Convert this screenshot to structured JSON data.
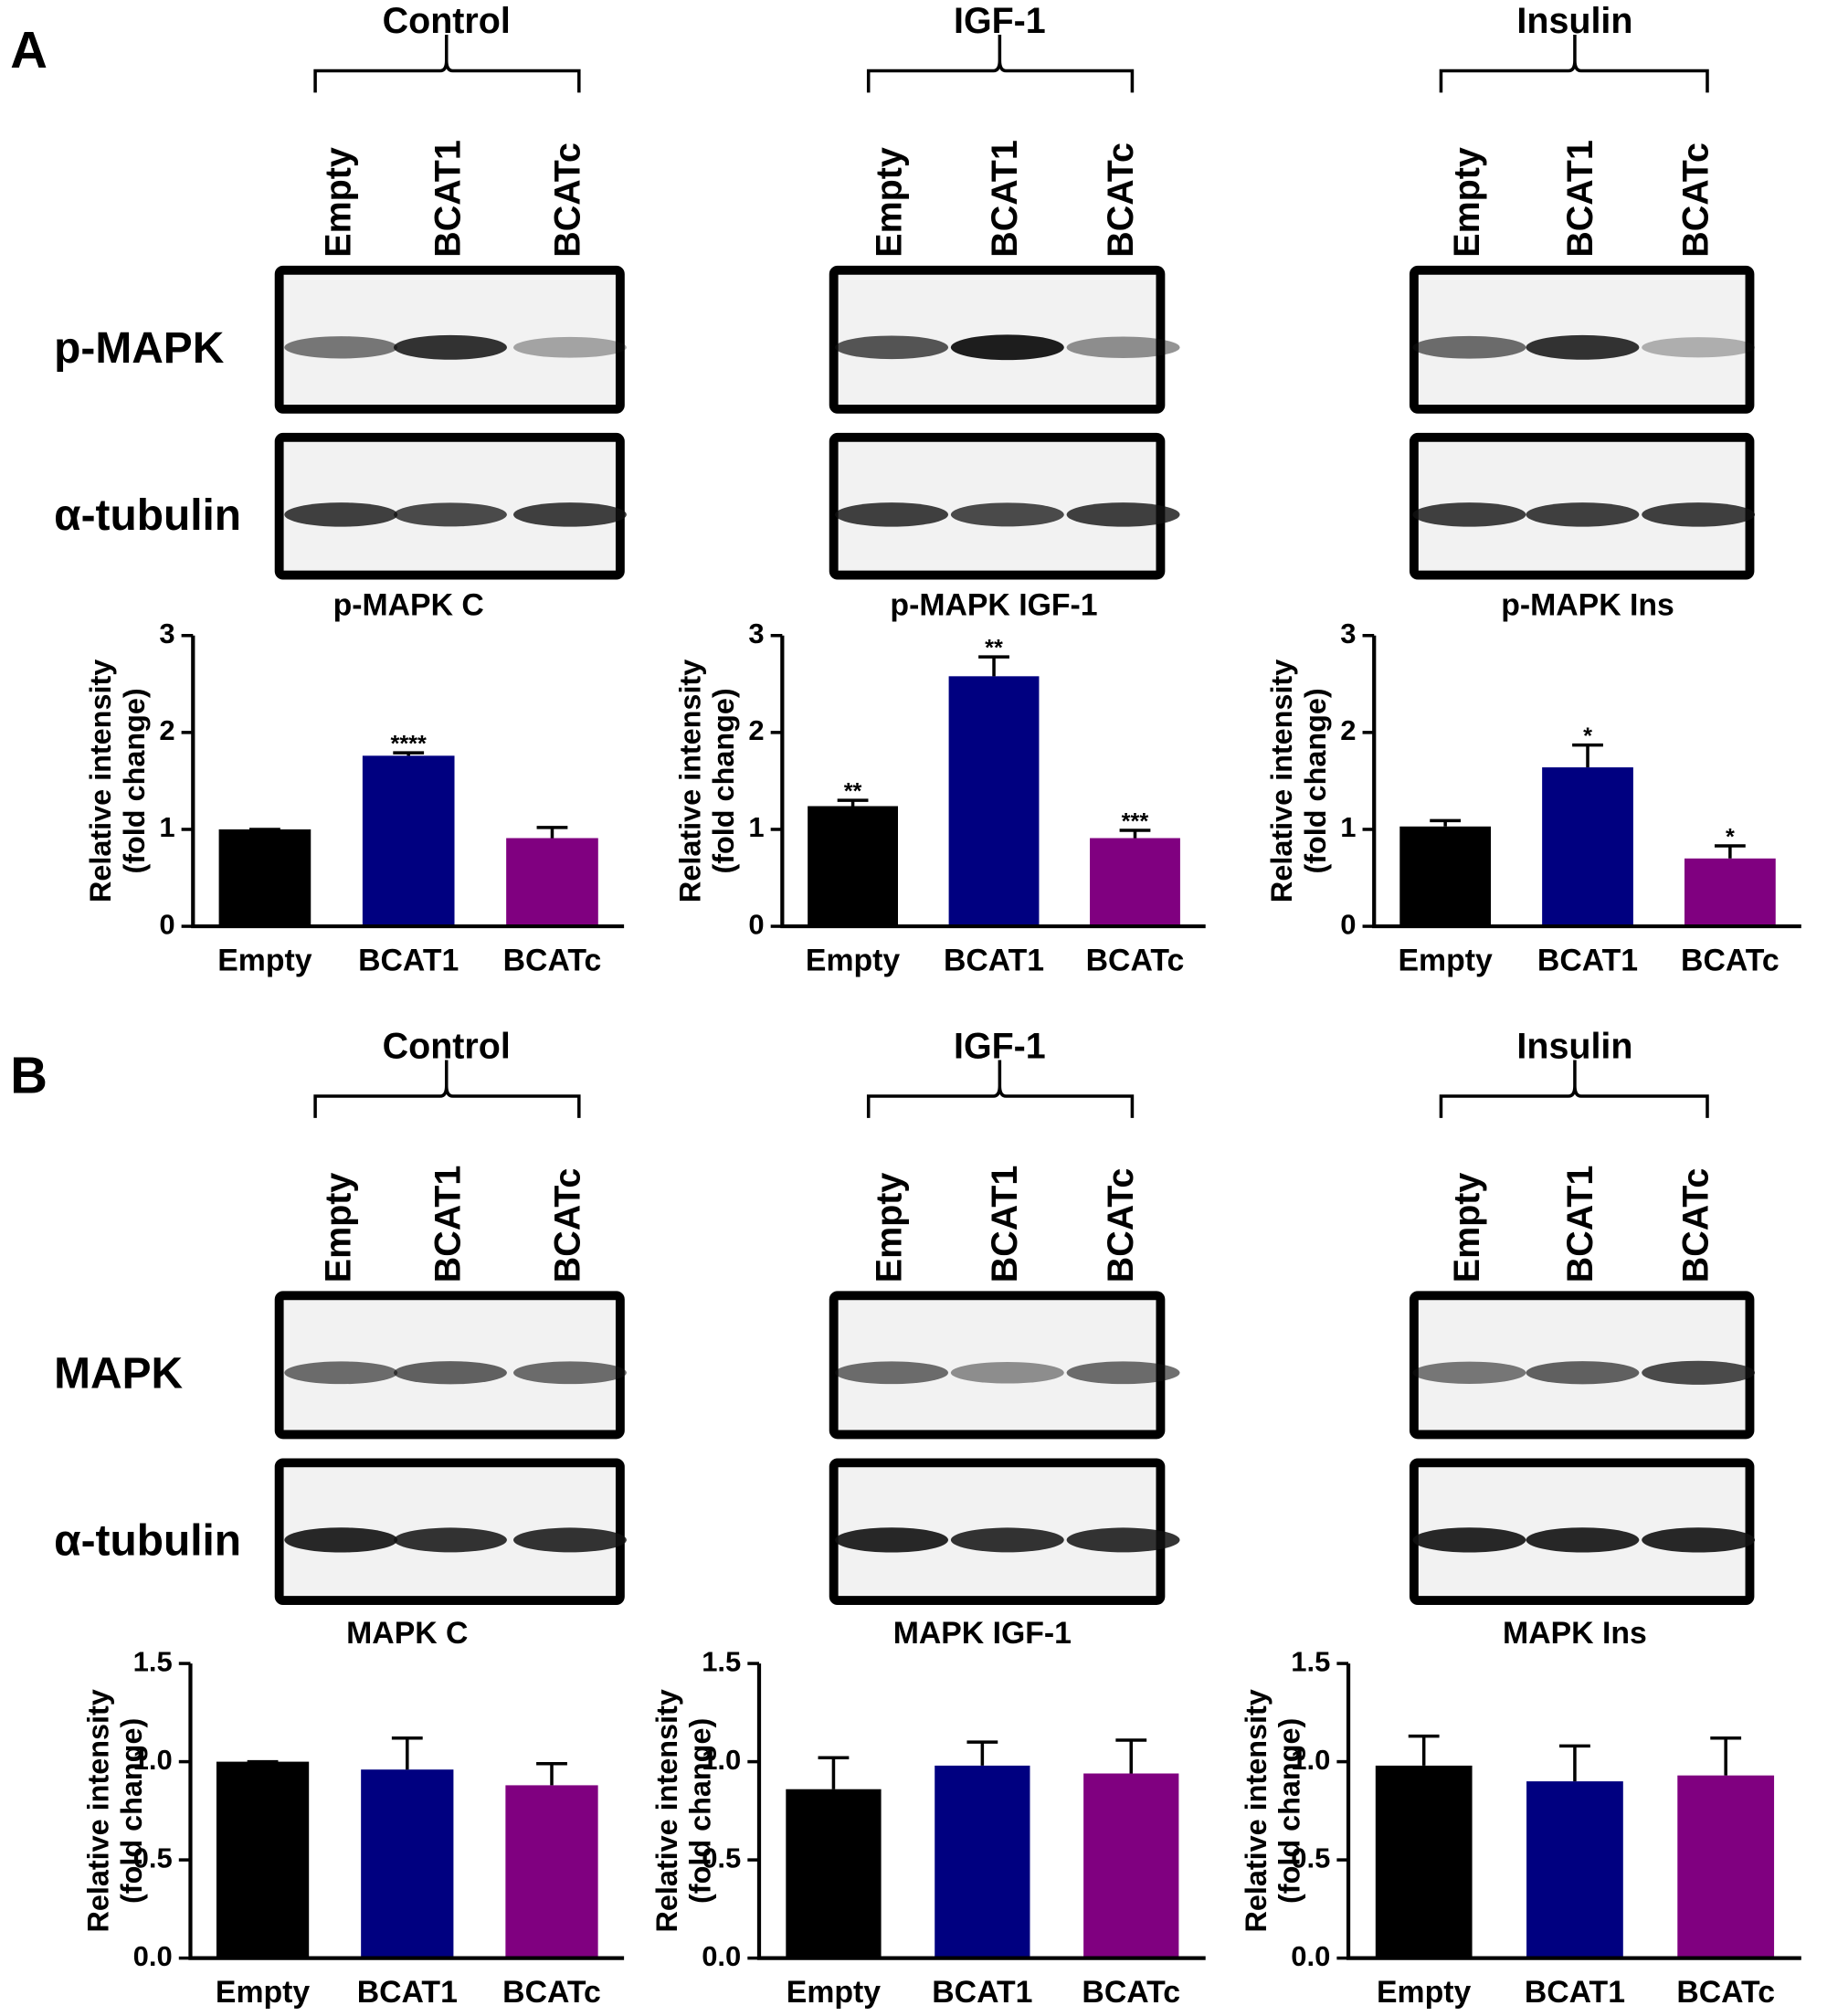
{
  "panels": [
    {
      "label": "A",
      "groups": [
        "Control",
        "IGF-1",
        "Insulin"
      ],
      "lanes": [
        "Empty",
        "BCAT1",
        "BCATc"
      ],
      "rows": [
        "p-MAPK",
        "α-tubulin"
      ]
    },
    {
      "label": "B",
      "groups": [
        "Control",
        "IGF-1",
        "Insulin"
      ],
      "lanes": [
        "Empty",
        "BCAT1",
        "BCATc"
      ],
      "rows": [
        "MAPK",
        "α-tubulin"
      ]
    }
  ],
  "chart_data": [
    {
      "type": "bar",
      "title": "p-MAPK C",
      "ylabel": [
        "Relative intensity",
        "(fold change)"
      ],
      "categories": [
        "Empty",
        "BCAT1",
        "BCATc"
      ],
      "colors": [
        "#000000",
        "#000080",
        "#800080"
      ],
      "values": [
        1.0,
        1.76,
        0.91
      ],
      "errors": [
        0,
        0.03,
        0.11
      ],
      "significance": [
        null,
        "****",
        null
      ],
      "ylim": [
        0,
        3
      ],
      "yticks": [
        0,
        1,
        2,
        3
      ]
    },
    {
      "type": "bar",
      "title": "p-MAPK IGF-1",
      "ylabel": [
        "Relative intensity",
        "(fold change)"
      ],
      "categories": [
        "Empty",
        "BCAT1",
        "BCATc"
      ],
      "colors": [
        "#000000",
        "#000080",
        "#800080"
      ],
      "values": [
        1.24,
        2.58,
        0.91
      ],
      "errors": [
        0.06,
        0.2,
        0.08
      ],
      "significance": [
        "**",
        "**",
        "***"
      ],
      "ylim": [
        0,
        3
      ],
      "yticks": [
        0,
        1,
        2,
        3
      ]
    },
    {
      "type": "bar",
      "title": "p-MAPK Ins",
      "ylabel": [
        "Relative intensity",
        "(fold change)"
      ],
      "categories": [
        "Empty",
        "BCAT1",
        "BCATc"
      ],
      "colors": [
        "#000000",
        "#000080",
        "#800080"
      ],
      "values": [
        1.03,
        1.64,
        0.7
      ],
      "errors": [
        0.06,
        0.23,
        0.13
      ],
      "significance": [
        null,
        "*",
        "*"
      ],
      "ylim": [
        0,
        3
      ],
      "yticks": [
        0,
        1,
        2,
        3
      ]
    },
    {
      "type": "bar",
      "title": "MAPK C",
      "ylabel": [
        "Relative intensity",
        "(fold change)"
      ],
      "categories": [
        "Empty",
        "BCAT1",
        "BCATc"
      ],
      "colors": [
        "#000000",
        "#000080",
        "#800080"
      ],
      "values": [
        1.0,
        0.96,
        0.88
      ],
      "errors": [
        0,
        0.16,
        0.11
      ],
      "ylim": [
        0,
        1.5
      ],
      "yticks": [
        {
          "value": 0,
          "label": "0.0"
        },
        0.5,
        {
          "value": 1,
          "label": "1.0"
        },
        1.5
      ]
    },
    {
      "type": "bar",
      "title": "MAPK IGF-1",
      "ylabel": [
        "Relative intensity",
        "(fold change)"
      ],
      "categories": [
        "Empty",
        "BCAT1",
        "BCATc"
      ],
      "colors": [
        "#000000",
        "#000080",
        "#800080"
      ],
      "values": [
        0.86,
        0.98,
        0.94
      ],
      "errors": [
        0.16,
        0.12,
        0.17
      ],
      "ylim": [
        0,
        1.5
      ],
      "yticks": [
        {
          "value": 0,
          "label": "0.0"
        },
        0.5,
        {
          "value": 1,
          "label": "1.0"
        },
        1.5
      ]
    },
    {
      "type": "bar",
      "title": "MAPK Ins",
      "ylabel": [
        "Relative intensity",
        "(fold change)"
      ],
      "categories": [
        "Empty",
        "BCAT1",
        "BCATc"
      ],
      "colors": [
        "#000000",
        "#000080",
        "#800080"
      ],
      "values": [
        0.98,
        0.9,
        0.93
      ],
      "errors": [
        0.15,
        0.18,
        0.19
      ],
      "ylim": [
        0,
        1.5
      ],
      "yticks": [
        {
          "value": 0,
          "label": "0.0"
        },
        0.5,
        {
          "value": 1,
          "label": "1.0"
        },
        1.5
      ]
    }
  ]
}
